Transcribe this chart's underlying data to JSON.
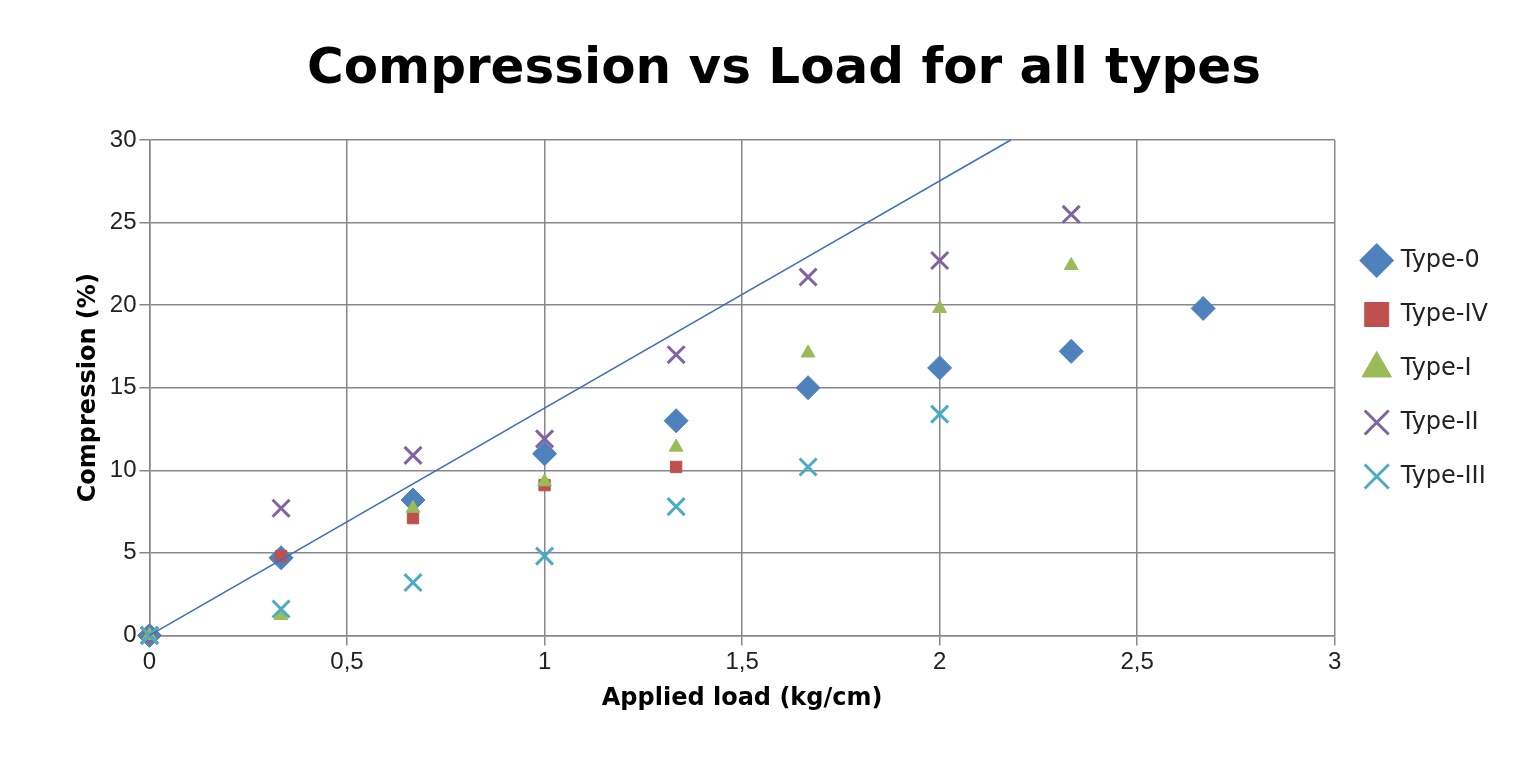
{
  "chart_data": {
    "type": "scatter",
    "title": "Compression vs Load for all types",
    "xlabel": "Applied load (kg/cm)",
    "ylabel": "Compression (%)",
    "x": [
      0,
      0.333,
      0.667,
      1,
      1.333,
      1.667,
      2,
      2.333,
      2.667
    ],
    "series": [
      {
        "name": "Type-0",
        "color": "#4f81bd",
        "marker": "diamond",
        "values": [
          0,
          4.7,
          8.2,
          11,
          13,
          15,
          16.2,
          17.2,
          19.8
        ]
      },
      {
        "name": "Type-IV",
        "color": "#c0504d",
        "marker": "square",
        "values": [
          0,
          4.8,
          7.1,
          9.1,
          10.2,
          null,
          null,
          null,
          null
        ]
      },
      {
        "name": "Type-I",
        "color": "#9bbb59",
        "marker": "triangle",
        "values": [
          0,
          1.2,
          7.7,
          9.3,
          11.4,
          17.1,
          19.8,
          22.4,
          null
        ]
      },
      {
        "name": "Type-II",
        "color": "#8064a2",
        "marker": "cross",
        "values": [
          0,
          7.7,
          10.9,
          11.9,
          17,
          21.7,
          22.7,
          25.5,
          null
        ]
      },
      {
        "name": "Type-III",
        "color": "#4bacc6",
        "marker": "cross",
        "values": [
          0,
          1.6,
          3.2,
          4.8,
          7.8,
          10.2,
          13.4,
          null,
          null
        ]
      },
      {
        "type": "line",
        "color": "#3a6fc0",
        "marker": "none",
        "x": [
          0,
          2.18
        ],
        "values": [
          0,
          30
        ]
      }
    ],
    "xlim": [
      0,
      3
    ],
    "xticks": [
      0,
      {
        "value": 0.5,
        "label": "0,5"
      },
      1,
      {
        "value": 1.5,
        "label": "1,5"
      },
      2,
      {
        "value": 2.5,
        "label": "2,5"
      },
      3
    ],
    "ylim": [
      0,
      30
    ],
    "yticks": [
      0,
      5,
      10,
      15,
      20,
      25,
      30
    ],
    "grid": true,
    "legend": "right"
  }
}
